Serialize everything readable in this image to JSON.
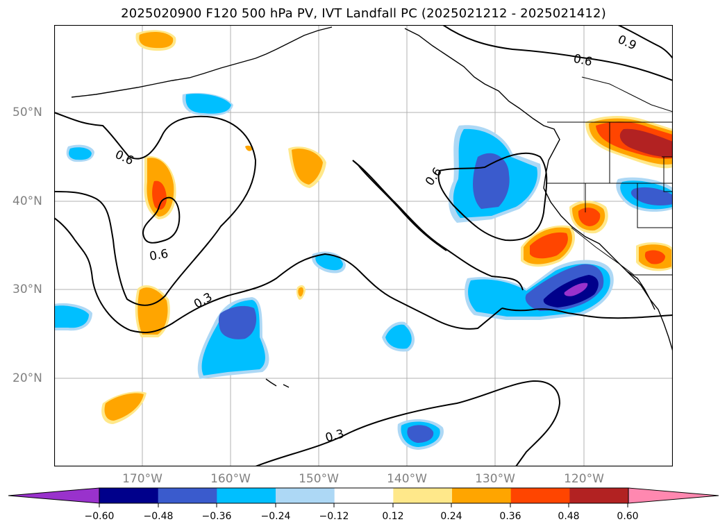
{
  "title": "2025020900 F120 500 hPa PV, IVT Landfall PC (2025021212 - 2025021412)",
  "map": {
    "lat_labels": [
      "50°N",
      "40°N",
      "30°N",
      "20°N"
    ],
    "lon_labels": [
      "170°W",
      "160°W",
      "150°W",
      "140°W",
      "130°W",
      "120°W"
    ],
    "contour_labels": [
      "0.9",
      "0.6",
      "0.6",
      "0.6",
      "0.6",
      "0.3",
      "0.3"
    ],
    "contour_color": "#000000",
    "grid": true
  },
  "colorbar": {
    "ticks": [
      "−0.60",
      "−0.48",
      "−0.36",
      "−0.24",
      "−0.12",
      "0.12",
      "0.24",
      "0.36",
      "0.48",
      "0.60"
    ],
    "colors": [
      "#9932cc",
      "#00008b",
      "#3a5bcd",
      "#00bfff",
      "#add8f5",
      "#ffffff",
      "#ffe88a",
      "#ffa500",
      "#ff4500",
      "#b22222",
      "#ff88b0"
    ]
  }
}
